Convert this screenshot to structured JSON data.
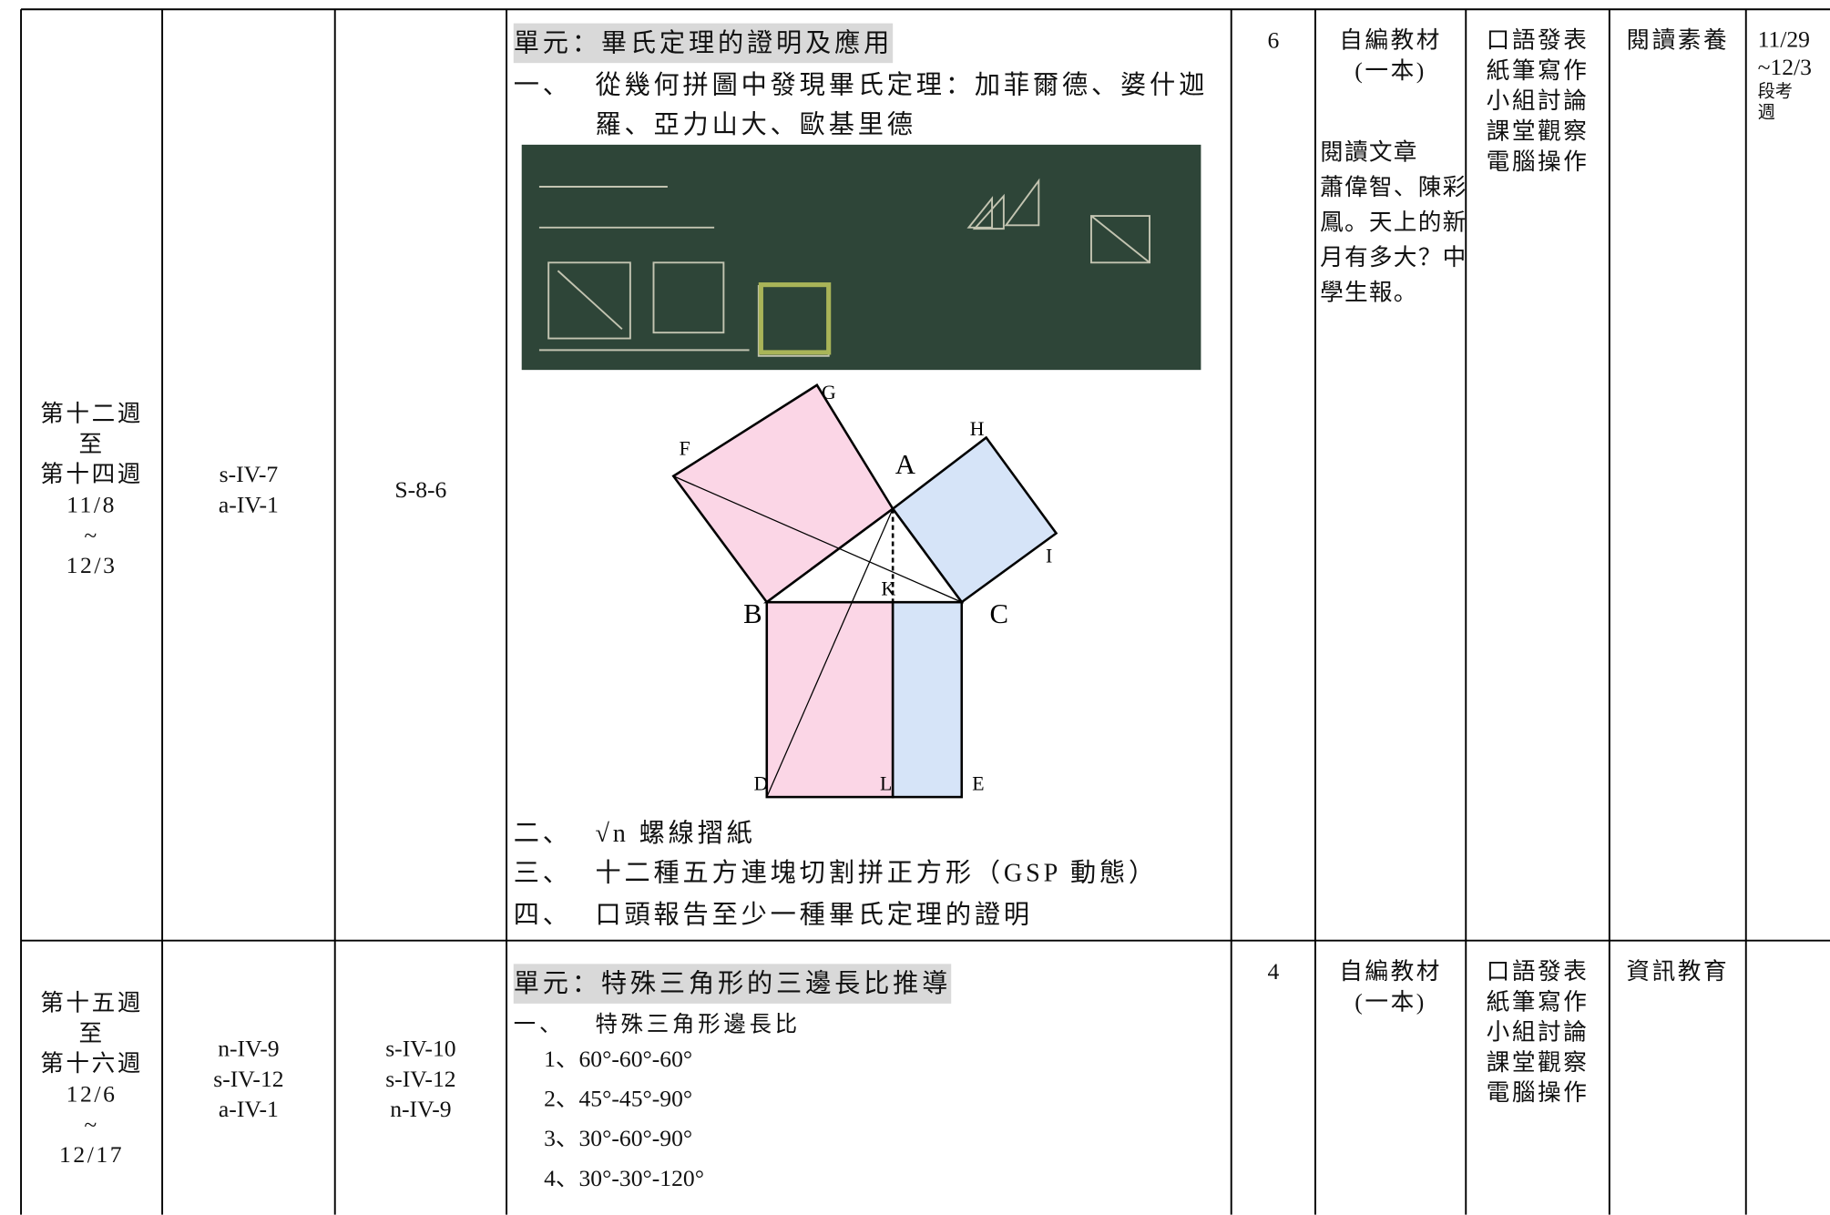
{
  "table": {
    "rows": [
      {
        "week": [
          "第十二週",
          "至",
          "第十四週",
          "11/8",
          "~",
          "12/3"
        ],
        "indicators": [
          "s-IV-7",
          "a-IV-1"
        ],
        "content": [
          "S-8-6"
        ],
        "unit": "單元：畢氏定理的證明及應用",
        "items": [
          {
            "num": "一、",
            "text": "從幾何拼圖中發現畢氏定理：加菲爾德、婆什迦羅、亞力山大、歐基里德"
          },
          {
            "num": "二、",
            "text": "√n 螺線摺紙"
          },
          {
            "num": "三、",
            "text": "十二種五方連塊切割拼正方形（GSP 動態）"
          },
          {
            "num": "四、",
            "text": "口頭報告至少一種畢氏定理的證明"
          }
        ],
        "hours": "6",
        "materials": [
          "自編教材",
          "(一本)"
        ],
        "materials_note": [
          "閱讀文章",
          "蕭偉智、陳彩鳳。天上的新月有多大？中學生報。"
        ],
        "assessment": [
          "口語發表",
          "紙筆寫作",
          "小組討論",
          "課堂觀察",
          "電腦操作"
        ],
        "issues": "閱讀素養",
        "note": [
          "11/29",
          "~12/3",
          "段考",
          "週"
        ]
      },
      {
        "week": [
          "第十五週",
          "至",
          "第十六週",
          "12/6",
          "~",
          "12/17"
        ],
        "indicators": [
          "n-IV-9",
          "s-IV-12",
          "a-IV-1"
        ],
        "content": [
          "s-IV-10",
          "s-IV-12",
          "n-IV-9"
        ],
        "unit": "單元：特殊三角形的三邊長比推導",
        "items": [
          {
            "num": "一、",
            "text": "特殊三角形邊長比"
          }
        ],
        "subitems": [
          "1、60°-60°-60°",
          "2、45°-45°-90°",
          "3、30°-60°-90°",
          "4、30°-30°-120°"
        ],
        "hours": "4",
        "materials": [
          "自編教材",
          "(一本)"
        ],
        "assessment": [
          "口語發表",
          "紙筆寫作",
          "小組討論",
          "課堂觀察",
          "電腦操作"
        ],
        "issues": "資訊教育"
      }
    ]
  },
  "figure": {
    "labels": [
      "G",
      "F",
      "A",
      "H",
      "I",
      "B",
      "C",
      "K",
      "D",
      "L",
      "E"
    ]
  }
}
